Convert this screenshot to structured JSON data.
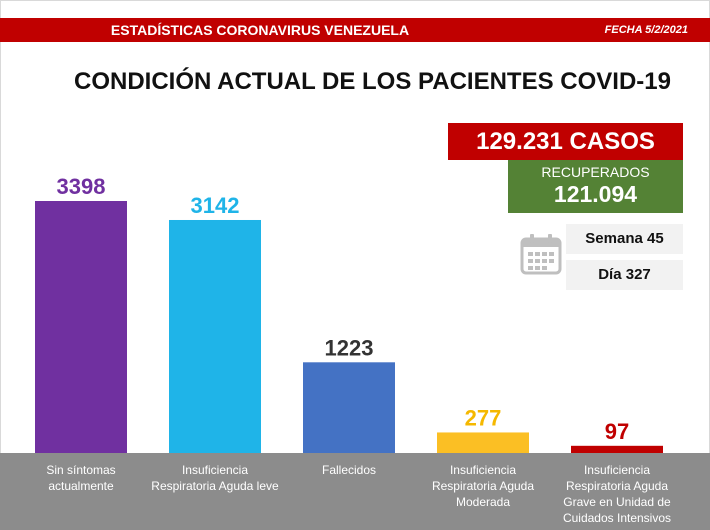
{
  "header": {
    "title": "ESTADÍSTICAS CORONAVIRUS VENEZUELA",
    "date": "FECHA 5/2/2021"
  },
  "main_title": "CONDICIÓN ACTUAL DE LOS PACIENTES COVID-19",
  "summary": {
    "cases": "129.231 CASOS",
    "recovered_label": "RECUPERADOS",
    "recovered_value": "121.094",
    "week": "Semana 45",
    "day": "Día 327",
    "calendar_icon": "calendar-icon"
  },
  "colors": {
    "header_red": "#c00000",
    "recovered_green": "#548235",
    "axis_band": "#8c8c8c"
  },
  "chart_data": {
    "type": "bar",
    "categories": [
      "Sin síntomas\nactualmente",
      "Insuficiencia\nRespiratoria Aguda leve",
      "Fallecidos",
      "Insuficiencia\nRespiratoria Aguda\nModerada",
      "Insuficiencia\nRespiratoria Aguda\nGrave en Unidad de\nCuidados Intensivos"
    ],
    "values": [
      3398,
      3142,
      1223,
      277,
      97
    ],
    "value_labels": [
      "3398",
      "3142",
      "1223",
      "277",
      "97"
    ],
    "bar_colors": [
      "#7030a0",
      "#1fb4e8",
      "#4472c4",
      "#fbbf24",
      "#c00000"
    ],
    "label_colors": [
      "#7030a0",
      "#1fb4e8",
      "#333333",
      "#f5b800",
      "#c00000"
    ],
    "ylim": [
      0,
      3398
    ],
    "grid": false
  }
}
